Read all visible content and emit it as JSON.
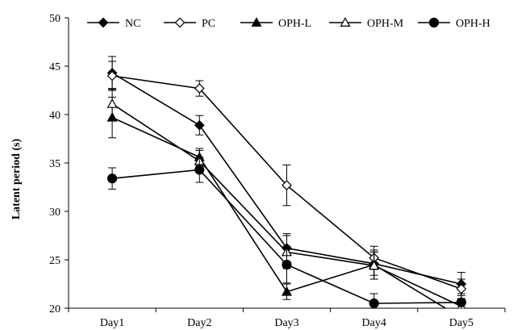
{
  "chart_data": {
    "type": "line",
    "title": "",
    "xlabel": "",
    "ylabel": "Latent period  (s)",
    "categories": [
      "Day1",
      "Day2",
      "Day3",
      "Day4",
      "Day5"
    ],
    "ylim": [
      20,
      50
    ],
    "yticks": [
      20,
      25,
      30,
      35,
      40,
      45,
      50
    ],
    "grid": false,
    "legend": "top",
    "series": [
      {
        "name": "NC",
        "marker": "diamond-filled",
        "values": [
          44.3,
          38.9,
          26.2,
          24.6,
          22.5
        ],
        "errors": [
          1.7,
          1.0,
          1.5,
          1.2,
          1.2
        ]
      },
      {
        "name": "PC",
        "marker": "diamond-open",
        "values": [
          44.0,
          42.7,
          32.7,
          25.2,
          22.0
        ],
        "errors": [
          1.5,
          0.8,
          2.1,
          1.2,
          1.0
        ]
      },
      {
        "name": "OPH-L",
        "marker": "triangle-filled",
        "values": [
          39.7,
          35.6,
          21.7,
          24.5,
          19.0
        ],
        "errors": [
          2.1,
          0.9,
          0.8,
          1.5,
          0.8
        ]
      },
      {
        "name": "OPH-M",
        "marker": "triangle-open",
        "values": [
          41.1,
          35.2,
          25.8,
          24.4,
          20.2
        ],
        "errors": [
          1.6,
          1.1,
          1.7,
          1.4,
          0.7
        ]
      },
      {
        "name": "OPH-H",
        "marker": "circle-filled",
        "values": [
          33.4,
          34.3,
          24.5,
          20.5,
          20.6
        ],
        "errors": [
          1.1,
          1.3,
          1.9,
          1.0,
          0.9
        ]
      }
    ]
  }
}
